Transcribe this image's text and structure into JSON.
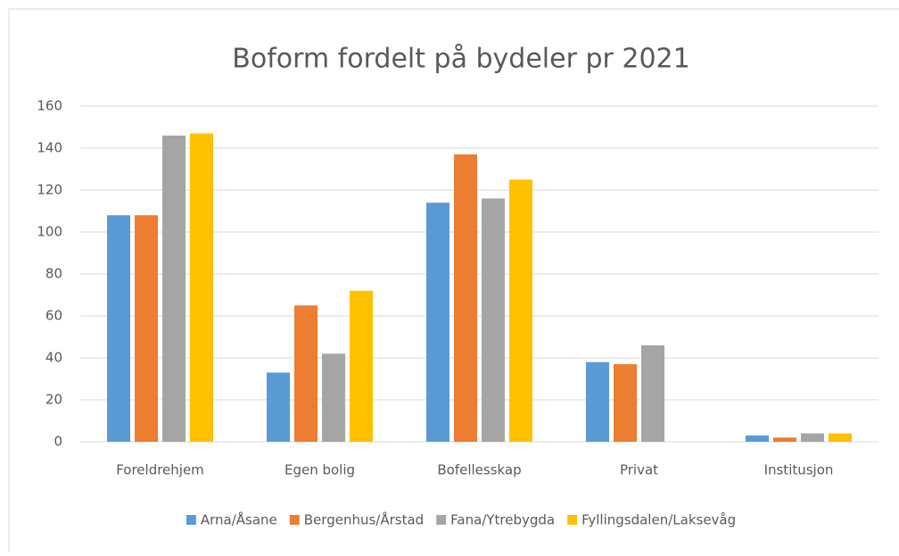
{
  "chart_data": {
    "type": "bar",
    "title": "Boform fordelt på bydeler pr 2021",
    "categories": [
      "Foreldrehjem",
      "Egen bolig",
      "Bofellesskap",
      "Privat",
      "Institusjon"
    ],
    "series": [
      {
        "name": "Arna/Åsane",
        "color": "#5b9bd5",
        "values": [
          108,
          33,
          114,
          38,
          3
        ]
      },
      {
        "name": "Bergenhus/Årstad",
        "color": "#ed7d31",
        "values": [
          108,
          65,
          137,
          37,
          2
        ]
      },
      {
        "name": "Fana/Ytrebygda",
        "color": "#a5a5a5",
        "values": [
          146,
          42,
          116,
          46,
          4
        ]
      },
      {
        "name": "Fyllingsdalen/Laksevåg",
        "color": "#ffc000",
        "values": [
          147,
          72,
          125,
          0,
          4
        ]
      }
    ],
    "ylim": [
      0,
      160
    ],
    "yticks": [
      0,
      20,
      40,
      60,
      80,
      100,
      120,
      140,
      160
    ],
    "grid": true,
    "legend": "bottom"
  }
}
